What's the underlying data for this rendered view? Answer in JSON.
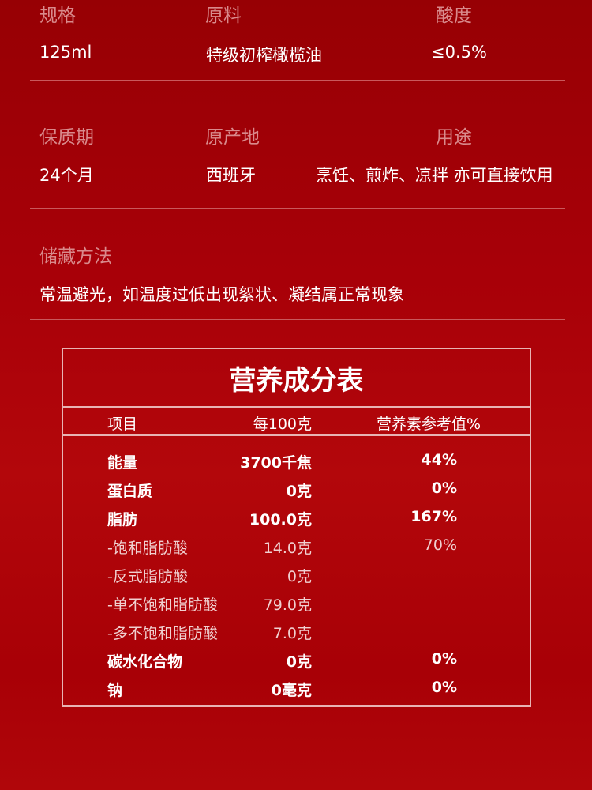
{
  "specs": [
    {
      "label": "规格",
      "value": "125ml"
    },
    {
      "label": "原料",
      "value": "特级初榨橄榄油"
    },
    {
      "label": "酸度",
      "value": "≤0.5%"
    },
    {
      "label": "保质期",
      "value": "24个月"
    },
    {
      "label": "原产地",
      "value": "西班牙"
    },
    {
      "label": "用途",
      "value": "烹饪、煎炸、凉拌 亦可直接饮用"
    }
  ],
  "storage": {
    "label": "储藏方法",
    "value": "常温避光，如温度过低出现絮状、凝结属正常现象"
  },
  "nutrition": {
    "title": "营养成分表",
    "headers": [
      "项目",
      "每100克",
      "营养素参考值%"
    ],
    "rows": [
      {
        "name": "能量",
        "amount": "3700千焦",
        "nrv": "44%",
        "bold": true
      },
      {
        "name": "蛋白质",
        "amount": "0克",
        "nrv": "0%",
        "bold": true
      },
      {
        "name": "脂肪",
        "amount": "100.0克",
        "nrv": "167%",
        "bold": true
      },
      {
        "name": "-饱和脂肪酸",
        "amount": "14.0克",
        "nrv": "70%",
        "bold": false
      },
      {
        "name": "-反式脂肪酸",
        "amount": "0克",
        "nrv": "",
        "bold": false
      },
      {
        "name": "-单不饱和脂肪酸",
        "amount": "79.0克",
        "nrv": "",
        "bold": false
      },
      {
        "name": "-多不饱和脂肪酸",
        "amount": "7.0克",
        "nrv": "",
        "bold": false
      },
      {
        "name": "碳水化合物",
        "amount": "0克",
        "nrv": "0%",
        "bold": true
      },
      {
        "name": "钠",
        "amount": "0毫克",
        "nrv": "0%",
        "bold": true
      }
    ]
  }
}
